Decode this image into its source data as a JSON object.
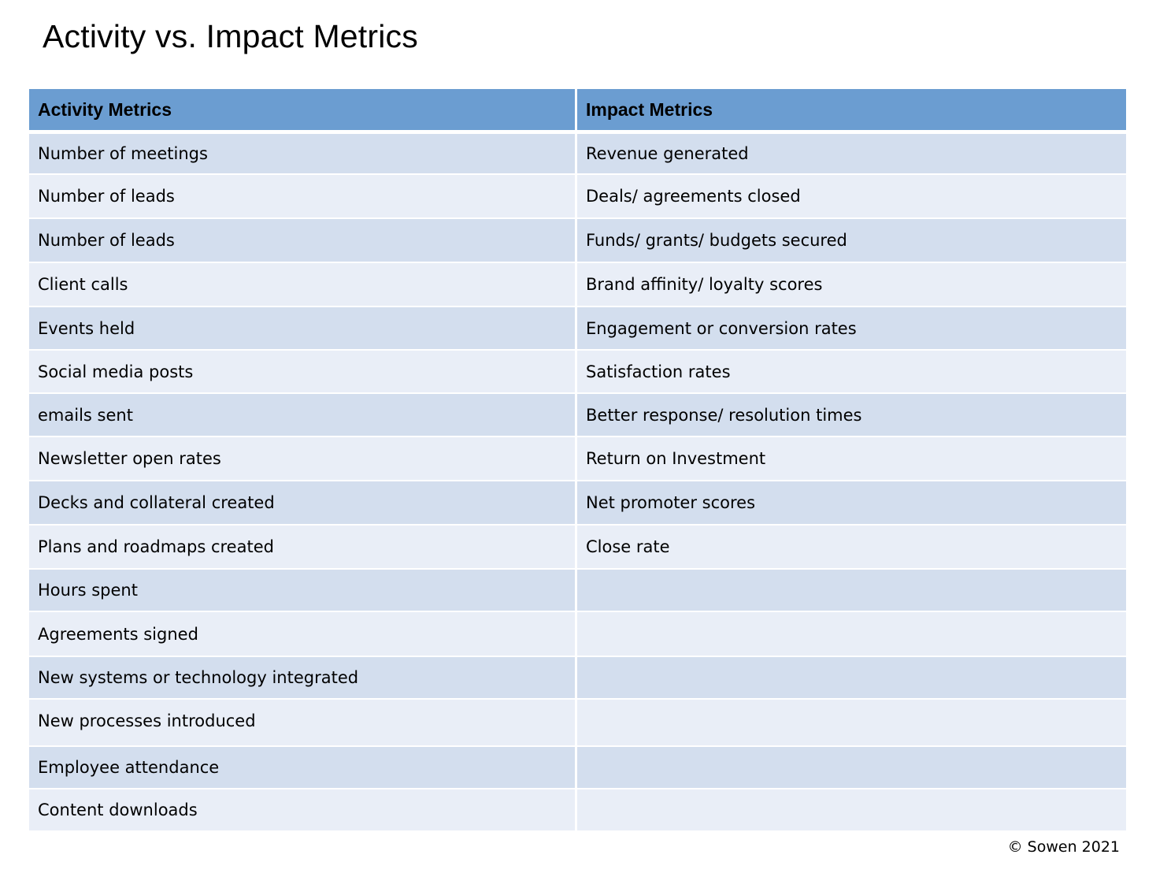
{
  "page": {
    "title": "Activity vs. Impact Metrics",
    "copyright": "© Sowen 2021"
  },
  "table": {
    "headers": [
      "Activity Metrics",
      "Impact Metrics"
    ],
    "rows": [
      [
        "Number of meetings",
        "Revenue generated"
      ],
      [
        "Number of leads",
        "Deals/ agreements closed"
      ],
      [
        "Number of leads",
        "Funds/ grants/ budgets secured"
      ],
      [
        "Client calls",
        "Brand affinity/ loyalty scores"
      ],
      [
        "Events held",
        "Engagement or conversion rates"
      ],
      [
        "Social media posts",
        "Satisfaction rates"
      ],
      [
        "emails sent",
        "Better response/ resolution times"
      ],
      [
        "Newsletter open rates",
        "Return on Investment"
      ],
      [
        "Decks and collateral created",
        "Net promoter scores"
      ],
      [
        "Plans and roadmaps created",
        "Close rate"
      ],
      [
        "Hours spent",
        ""
      ],
      [
        "Agreements signed",
        ""
      ],
      [
        "New systems or technology integrated",
        ""
      ],
      [
        "New processes introduced",
        ""
      ],
      [
        "Employee attendance",
        ""
      ],
      [
        "Content downloads",
        ""
      ]
    ]
  },
  "colors": {
    "header_background": "#6b9dd1",
    "row_band_dark": "#d3deee",
    "row_band_light": "#e9eef7",
    "grid_lines": "#ffffff"
  }
}
